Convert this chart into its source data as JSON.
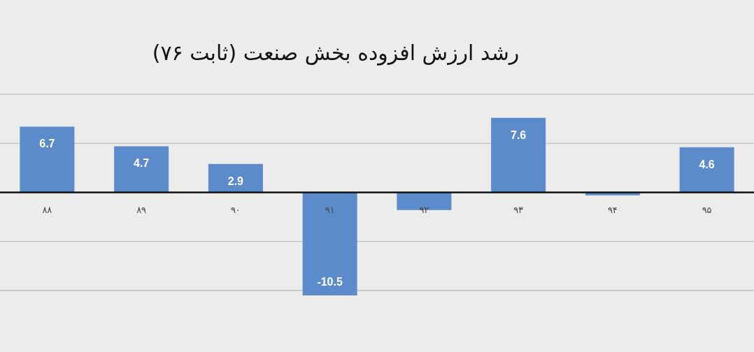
{
  "chart_data": {
    "type": "bar",
    "title": "رشد ارزش افزوده بخش صنعت (ثابت ۷۶)",
    "categories": [
      "۸۸",
      "۸۹",
      "۹۰",
      "۹۱",
      "۹۲",
      "۹۳",
      "۹۴",
      "۹۵"
    ],
    "values": [
      6.7,
      4.7,
      2.9,
      -10.5,
      -1.8,
      7.6,
      -0.3,
      4.6
    ],
    "value_labels": [
      "6.7",
      "4.7",
      "2.9",
      "-10.5",
      null,
      "7.6",
      null,
      "4.6"
    ],
    "color": "#5b8bcb",
    "grid": "y",
    "tick_labels": "x"
  }
}
